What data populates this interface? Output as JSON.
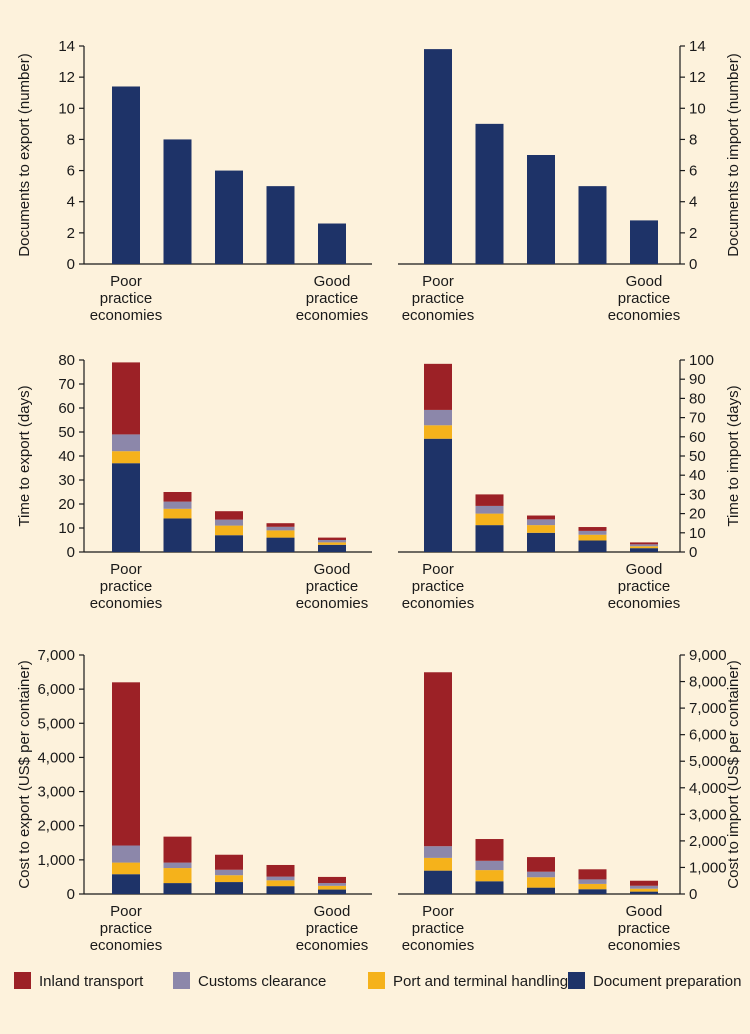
{
  "colors": {
    "inland": "#9c2126",
    "customs": "#8c87aa",
    "port": "#f5b21b",
    "document": "#1e3368",
    "simple": "#1e3368",
    "background": "#fdf2dc",
    "axis": "#1a1a1a"
  },
  "legend": [
    {
      "key": "inland",
      "label": "Inland transport"
    },
    {
      "key": "customs",
      "label": "Customs clearance"
    },
    {
      "key": "port",
      "label": "Port and terminal handling"
    },
    {
      "key": "document",
      "label": "Document preparation"
    }
  ],
  "category_labels": {
    "first": [
      "Poor",
      "practice",
      "economies"
    ],
    "last": [
      "Good",
      "practice",
      "economies"
    ]
  },
  "chart_data": [
    {
      "id": "docs-export",
      "type": "bar",
      "ylabel": "Documents to export (number)",
      "ylim": [
        0,
        14
      ],
      "ticks": [
        "0",
        "2",
        "4",
        "6",
        "8",
        "10",
        "12",
        "14"
      ],
      "values": [
        11.4,
        8,
        6,
        5,
        2.6
      ]
    },
    {
      "id": "docs-import",
      "type": "bar",
      "ylabel": "Documents to import (number)",
      "ylim": [
        0,
        14
      ],
      "ticks": [
        "0",
        "2",
        "4",
        "6",
        "8",
        "10",
        "12",
        "14"
      ],
      "values": [
        13.8,
        9,
        7,
        5,
        2.8
      ]
    },
    {
      "id": "time-export",
      "type": "bar",
      "stacked": true,
      "ylabel": "Time to export (days)",
      "ylim": [
        0,
        80
      ],
      "ticks": [
        "0",
        "10",
        "20",
        "30",
        "40",
        "50",
        "60",
        "70",
        "80"
      ],
      "series": [
        {
          "key": "document",
          "values": [
            37,
            14,
            7,
            6,
            3
          ]
        },
        {
          "key": "port",
          "values": [
            5,
            4,
            4,
            3,
            1
          ]
        },
        {
          "key": "customs",
          "values": [
            7,
            3,
            2.5,
            1.5,
            1
          ]
        },
        {
          "key": "inland",
          "values": [
            30,
            4,
            3.5,
            1.5,
            1
          ]
        }
      ]
    },
    {
      "id": "time-import",
      "type": "bar",
      "stacked": true,
      "ylabel": "Time to import (days)",
      "ylim": [
        0,
        100
      ],
      "ticks": [
        "0",
        "10",
        "20",
        "30",
        "40",
        "50",
        "60",
        "70",
        "80",
        "90",
        "100"
      ],
      "series": [
        {
          "key": "document",
          "values": [
            59,
            14,
            10,
            6,
            2
          ]
        },
        {
          "key": "port",
          "values": [
            7,
            6,
            4,
            3,
            1
          ]
        },
        {
          "key": "customs",
          "values": [
            8,
            4,
            3,
            2,
            1
          ]
        },
        {
          "key": "inland",
          "values": [
            24,
            6,
            2,
            2,
            1
          ]
        }
      ]
    },
    {
      "id": "cost-export",
      "type": "bar",
      "stacked": true,
      "ylabel": "Cost to export (US$ per container)",
      "ylim": [
        0,
        7000
      ],
      "ticks": [
        "0",
        "1,000",
        "2,000",
        "3,000",
        "4,000",
        "5,000",
        "6,000",
        "7,000"
      ],
      "series": [
        {
          "key": "document",
          "values": [
            580,
            320,
            350,
            230,
            130
          ]
        },
        {
          "key": "port",
          "values": [
            340,
            440,
            200,
            170,
            110
          ]
        },
        {
          "key": "customs",
          "values": [
            500,
            160,
            160,
            110,
            80
          ]
        },
        {
          "key": "inland",
          "values": [
            4780,
            760,
            440,
            340,
            180
          ]
        }
      ]
    },
    {
      "id": "cost-import",
      "type": "bar",
      "stacked": true,
      "ylabel": "Cost to import (US$ per container)",
      "ylim": [
        0,
        9000
      ],
      "ticks": [
        "0",
        "1,000",
        "2,000",
        "3,000",
        "4,000",
        "5,000",
        "6,000",
        "7,000",
        "8,000",
        "9,000"
      ],
      "series": [
        {
          "key": "document",
          "values": [
            880,
            480,
            240,
            180,
            90
          ]
        },
        {
          "key": "port",
          "values": [
            480,
            420,
            390,
            200,
            110
          ]
        },
        {
          "key": "customs",
          "values": [
            440,
            350,
            210,
            170,
            110
          ]
        },
        {
          "key": "inland",
          "values": [
            6550,
            820,
            550,
            380,
            190
          ]
        }
      ]
    }
  ]
}
